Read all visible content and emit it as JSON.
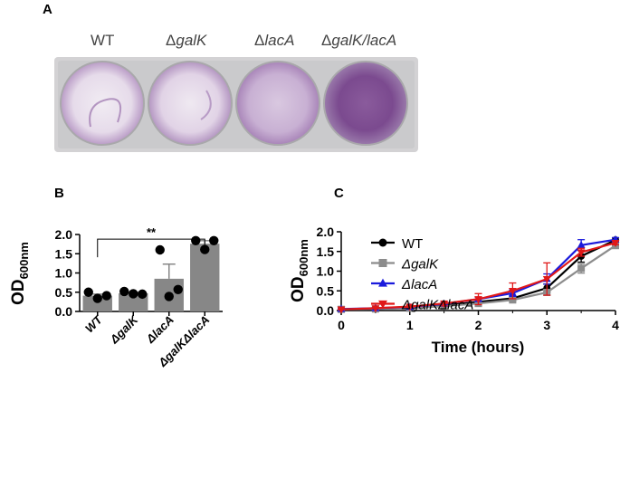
{
  "panels": {
    "a": "A",
    "b": "B",
    "c": "C"
  },
  "photo": {
    "labels": [
      {
        "delta": "",
        "text": "WT",
        "italic": false
      },
      {
        "delta": "Δ",
        "text": "galK",
        "italic": true
      },
      {
        "delta": "Δ",
        "text": "lacA",
        "italic": true
      },
      {
        "delta": "Δ",
        "text": "galK/lacA",
        "italic": true
      }
    ],
    "colors": {
      "plate": "#cfcfd0",
      "well_light": "#ebe2ee",
      "purple": "#8b5a9a",
      "dark_purple": "#6a3a80"
    }
  },
  "chart_data": [
    {
      "type": "bar",
      "title": "",
      "ylabel": "OD",
      "ylabel_sub": "600nm",
      "xlabel": "",
      "ylim": [
        0,
        2.0
      ],
      "yticks": [
        "0.0",
        "0.5",
        "1.0",
        "1.5",
        "2.0"
      ],
      "categories": [
        "WT",
        "ΔgalK",
        "ΔlacA",
        "ΔgalKΔlacA"
      ],
      "values": [
        0.41,
        0.47,
        0.85,
        1.76
      ],
      "error": [
        0.04,
        0.03,
        0.38,
        0.08
      ],
      "points": [
        [
          0.5,
          0.41,
          0.34
        ],
        [
          0.52,
          0.45,
          0.46
        ],
        [
          1.6,
          0.57,
          0.39
        ],
        [
          1.84,
          1.84,
          1.61
        ]
      ],
      "significance": {
        "label": "**",
        "from": "WT",
        "to": "ΔgalKΔlacA",
        "y": 1.88
      },
      "bar_color": "#878787"
    },
    {
      "type": "line",
      "title": "",
      "xlabel": "Time (hours)",
      "ylabel": "OD",
      "ylabel_sub": "600nm",
      "xlim": [
        0,
        4
      ],
      "ylim": [
        0,
        2.0
      ],
      "xticks": [
        "0",
        "1",
        "2",
        "3",
        "4"
      ],
      "yticks": [
        "0.0",
        "0.5",
        "1.0",
        "1.5",
        "2.0"
      ],
      "x": [
        0,
        0.5,
        1,
        1.5,
        2,
        2.5,
        3,
        3.5,
        4
      ],
      "series": [
        {
          "name": "WT",
          "color": "#000000",
          "marker": "circle",
          "values": [
            0.03,
            0.04,
            0.07,
            0.13,
            0.22,
            0.31,
            0.57,
            1.38,
            1.79
          ],
          "err": [
            0.005,
            0.005,
            0.01,
            0.02,
            0.03,
            0.04,
            0.1,
            0.15,
            0.06
          ]
        },
        {
          "name": "ΔgalK",
          "color": "#8c8c8c",
          "marker": "square",
          "values": [
            0.03,
            0.04,
            0.06,
            0.11,
            0.18,
            0.27,
            0.46,
            1.07,
            1.65
          ],
          "err": [
            0.005,
            0.005,
            0.01,
            0.02,
            0.03,
            0.04,
            0.07,
            0.12,
            0.06
          ]
        },
        {
          "name": "ΔlacA",
          "color": "#1a1adc",
          "marker": "triangle-up",
          "values": [
            0.04,
            0.06,
            0.09,
            0.17,
            0.29,
            0.44,
            0.8,
            1.66,
            1.8
          ],
          "err": [
            0.005,
            0.01,
            0.02,
            0.03,
            0.05,
            0.08,
            0.13,
            0.14,
            0.05
          ]
        },
        {
          "name": "ΔgalKΔlacA",
          "color": "#e01818",
          "marker": "triangle-down",
          "values": [
            0.03,
            0.06,
            0.1,
            0.18,
            0.29,
            0.5,
            0.8,
            1.48,
            1.72
          ],
          "err": [
            0.005,
            0.01,
            0.02,
            0.06,
            0.14,
            0.2,
            0.41,
            0.1,
            0.05
          ]
        }
      ]
    }
  ]
}
